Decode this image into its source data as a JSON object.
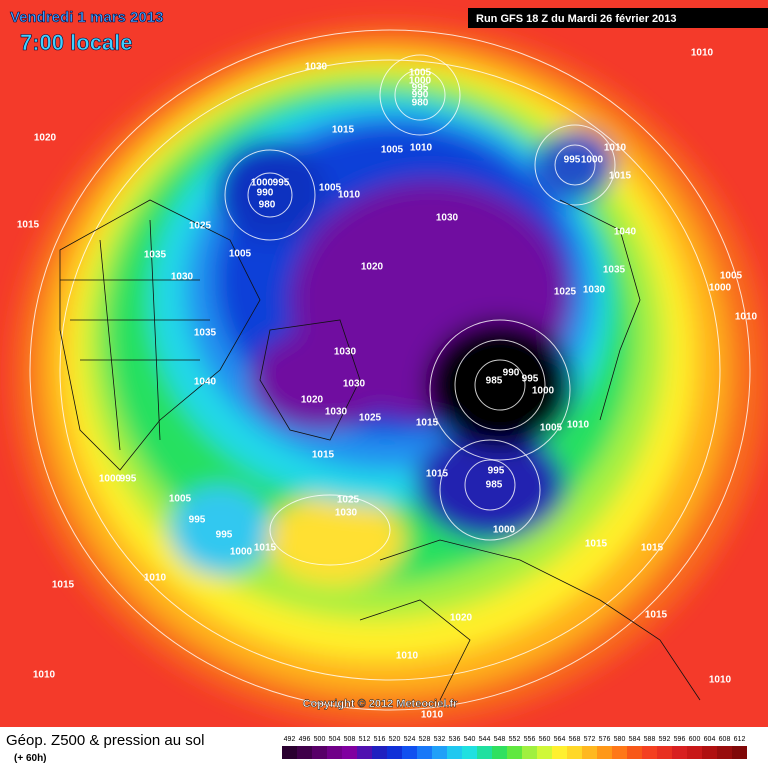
{
  "header": {
    "date": "Vendredi 1 mars 2013",
    "time": "7:00 locale",
    "run": "Run GFS 18 Z du Mardi 26 février 2013"
  },
  "isobar_labels": [
    1030,
    1005,
    1000,
    995,
    990,
    980,
    1010,
    1020,
    1015,
    1005,
    1010,
    995,
    1000,
    1010,
    1015,
    1000,
    995,
    990,
    980,
    1005,
    1010,
    1015,
    1025,
    1030,
    1040,
    1035,
    1005,
    1020,
    1035,
    1005,
    1000,
    1025,
    1030,
    1030,
    1035,
    1030,
    1010,
    1040,
    985,
    990,
    995,
    1000,
    1030,
    1020,
    1030,
    1025,
    1015,
    1005,
    1010,
    1015,
    1015,
    995,
    985,
    1000,
    995,
    1005,
    1025,
    1030,
    1000,
    995,
    995,
    1000,
    1015,
    1015,
    1015,
    1010,
    1015,
    1020,
    1015,
    1010,
    1010,
    1010,
    1010
  ],
  "copyright": "Copyright © 2012 Meteociel.fr",
  "legend": {
    "title": "Géop. Z500 & pression au sol",
    "subtitle": "(+ 60h)",
    "scale": [
      492,
      496,
      500,
      504,
      508,
      512,
      516,
      520,
      524,
      528,
      532,
      536,
      540,
      544,
      548,
      552,
      556,
      560,
      564,
      568,
      572,
      576,
      580,
      584,
      588,
      592,
      596,
      600,
      604,
      608,
      612
    ]
  }
}
